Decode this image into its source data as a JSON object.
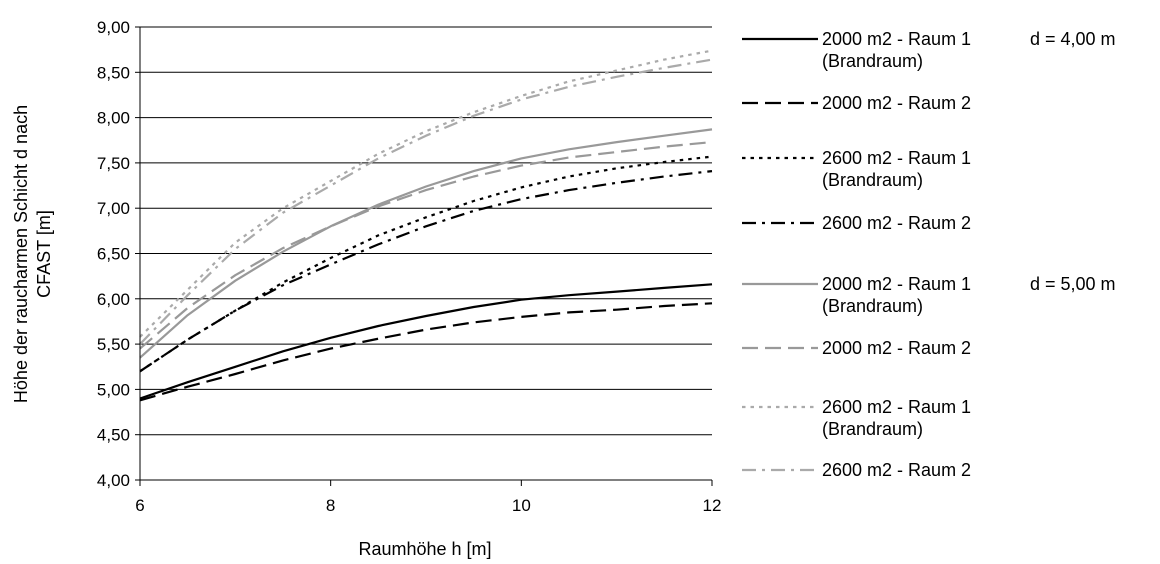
{
  "chart_data": {
    "type": "line",
    "xlabel": "Raumhöhe h [m]",
    "ylabel": "Höhe der raucharmen Schicht d nach CFAST [m]",
    "xlim": [
      6,
      12
    ],
    "ylim": [
      4.0,
      9.0
    ],
    "xticks": [
      "6",
      "8",
      "10",
      "12"
    ],
    "yticks": [
      "4,00",
      "4,50",
      "5,00",
      "5,50",
      "6,00",
      "6,50",
      "7,00",
      "7,50",
      "8,00",
      "8,50",
      "9,00"
    ],
    "grid": "horizontal",
    "legend_position": "right",
    "x": [
      6,
      6.5,
      7,
      7.5,
      8,
      8.5,
      9,
      9.5,
      10,
      10.5,
      11,
      11.5,
      12
    ],
    "series": [
      {
        "name": "2000 m2 - Raum 1 (Brandraum)",
        "group": "d = 4,00 m",
        "color": "#000000",
        "dash": "solid",
        "values": [
          4.9,
          5.08,
          5.25,
          5.42,
          5.57,
          5.7,
          5.81,
          5.91,
          5.99,
          6.04,
          6.08,
          6.12,
          6.16
        ]
      },
      {
        "name": "2000 m2 - Raum 2",
        "group": "d = 4,00 m",
        "color": "#000000",
        "dash": "longdash",
        "values": [
          4.88,
          5.03,
          5.17,
          5.32,
          5.45,
          5.56,
          5.66,
          5.74,
          5.8,
          5.85,
          5.88,
          5.92,
          5.95
        ]
      },
      {
        "name": "2600 m2 - Raum 1 (Brandraum)",
        "group": "d = 4,00 m",
        "color": "#000000",
        "dash": "dot",
        "values": [
          5.2,
          5.55,
          5.87,
          6.18,
          6.45,
          6.7,
          6.9,
          7.08,
          7.23,
          7.35,
          7.44,
          7.51,
          7.57
        ]
      },
      {
        "name": "2600 m2 - Raum 2",
        "group": "d = 4,00 m",
        "color": "#000000",
        "dash": "dashdot",
        "values": [
          5.2,
          5.55,
          5.87,
          6.15,
          6.38,
          6.6,
          6.8,
          6.97,
          7.1,
          7.2,
          7.28,
          7.35,
          7.41
        ]
      },
      {
        "name": "2000 m2 - Raum 1 (Brandraum)",
        "group": "d = 5,00 m",
        "color": "#999999",
        "dash": "solid",
        "values": [
          5.35,
          5.82,
          6.2,
          6.52,
          6.8,
          7.04,
          7.24,
          7.41,
          7.55,
          7.65,
          7.73,
          7.8,
          7.87
        ]
      },
      {
        "name": "2000 m2 - Raum 2",
        "group": "d = 5,00 m",
        "color": "#999999",
        "dash": "longdash",
        "values": [
          5.45,
          5.9,
          6.26,
          6.56,
          6.8,
          7.02,
          7.2,
          7.35,
          7.47,
          7.56,
          7.62,
          7.68,
          7.73
        ]
      },
      {
        "name": "2600 m2 - Raum 1 (Brandraum)",
        "group": "d = 5,00 m",
        "color": "#aaaaaa",
        "dash": "dot",
        "values": [
          5.58,
          6.1,
          6.62,
          7.0,
          7.3,
          7.6,
          7.85,
          8.06,
          8.24,
          8.4,
          8.52,
          8.64,
          8.74
        ]
      },
      {
        "name": "2600 m2 - Raum 2",
        "group": "d = 5,00 m",
        "color": "#aaaaaa",
        "dash": "dashdot",
        "values": [
          5.5,
          6.04,
          6.55,
          6.95,
          7.25,
          7.55,
          7.8,
          8.02,
          8.2,
          8.34,
          8.45,
          8.55,
          8.64
        ]
      }
    ],
    "legend": [
      {
        "lines": [
          "2000 m2 - Raum 1",
          "(Brandraum)"
        ],
        "group_label": "d = 4,00 m",
        "series": 0
      },
      {
        "lines": [
          "2000 m2 - Raum 2"
        ],
        "group_label": "",
        "series": 1
      },
      {
        "lines": [
          "2600 m2 - Raum 1",
          "(Brandraum)"
        ],
        "group_label": "",
        "series": 2
      },
      {
        "lines": [
          "2600 m2 - Raum 2"
        ],
        "group_label": "",
        "series": 3
      },
      {
        "lines": [
          "2000 m2 - Raum 1",
          "(Brandraum)"
        ],
        "group_label": "d = 5,00 m",
        "series": 4
      },
      {
        "lines": [
          "2000 m2 - Raum 2"
        ],
        "group_label": "",
        "series": 5
      },
      {
        "lines": [
          "2600 m2 - Raum 1",
          "(Brandraum)"
        ],
        "group_label": "",
        "series": 6
      },
      {
        "lines": [
          "2600 m2 - Raum 2"
        ],
        "group_label": "",
        "series": 7
      }
    ]
  }
}
